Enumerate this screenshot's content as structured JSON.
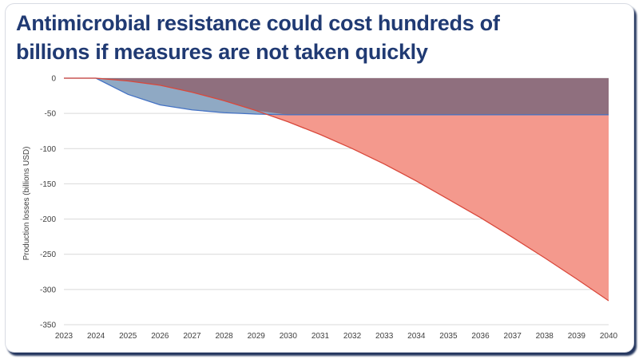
{
  "slide": {
    "title_line1": "Antimicrobial resistance could cost hundreds of",
    "title_line2": "billions if measures are not taken quickly"
  },
  "chart_data": {
    "type": "area",
    "title": "",
    "xlabel": "",
    "ylabel": "Production losses (billions USD)",
    "x": [
      "2023",
      "2024",
      "2025",
      "2026",
      "2027",
      "2028",
      "2029",
      "2030",
      "2031",
      "2032",
      "2033",
      "2034",
      "2035",
      "2036",
      "2037",
      "2038",
      "2039",
      "2040"
    ],
    "ylim": [
      -350,
      0
    ],
    "yticks": [
      0,
      -50,
      -100,
      -150,
      -200,
      -250,
      -300,
      -350
    ],
    "grid": true,
    "legend": "none",
    "series": [
      {
        "color_fill": "#8fa9c4",
        "color_line": "#4472c4",
        "values": [
          0,
          0,
          -23,
          -38,
          -45,
          -49,
          -51,
          -52,
          -52,
          -52,
          -52,
          -52,
          -52,
          -52,
          -52,
          -52,
          -52,
          -52
        ]
      },
      {
        "color_fill": "#f4998d",
        "color_line": "#d9483b",
        "values": [
          0,
          0,
          -4,
          -10,
          -20,
          -32,
          -46,
          -62,
          -80,
          -100,
          -122,
          -146,
          -172,
          -198,
          -226,
          -255,
          -285,
          -316
        ]
      }
    ],
    "overlap_color": "#8f6f7e"
  }
}
